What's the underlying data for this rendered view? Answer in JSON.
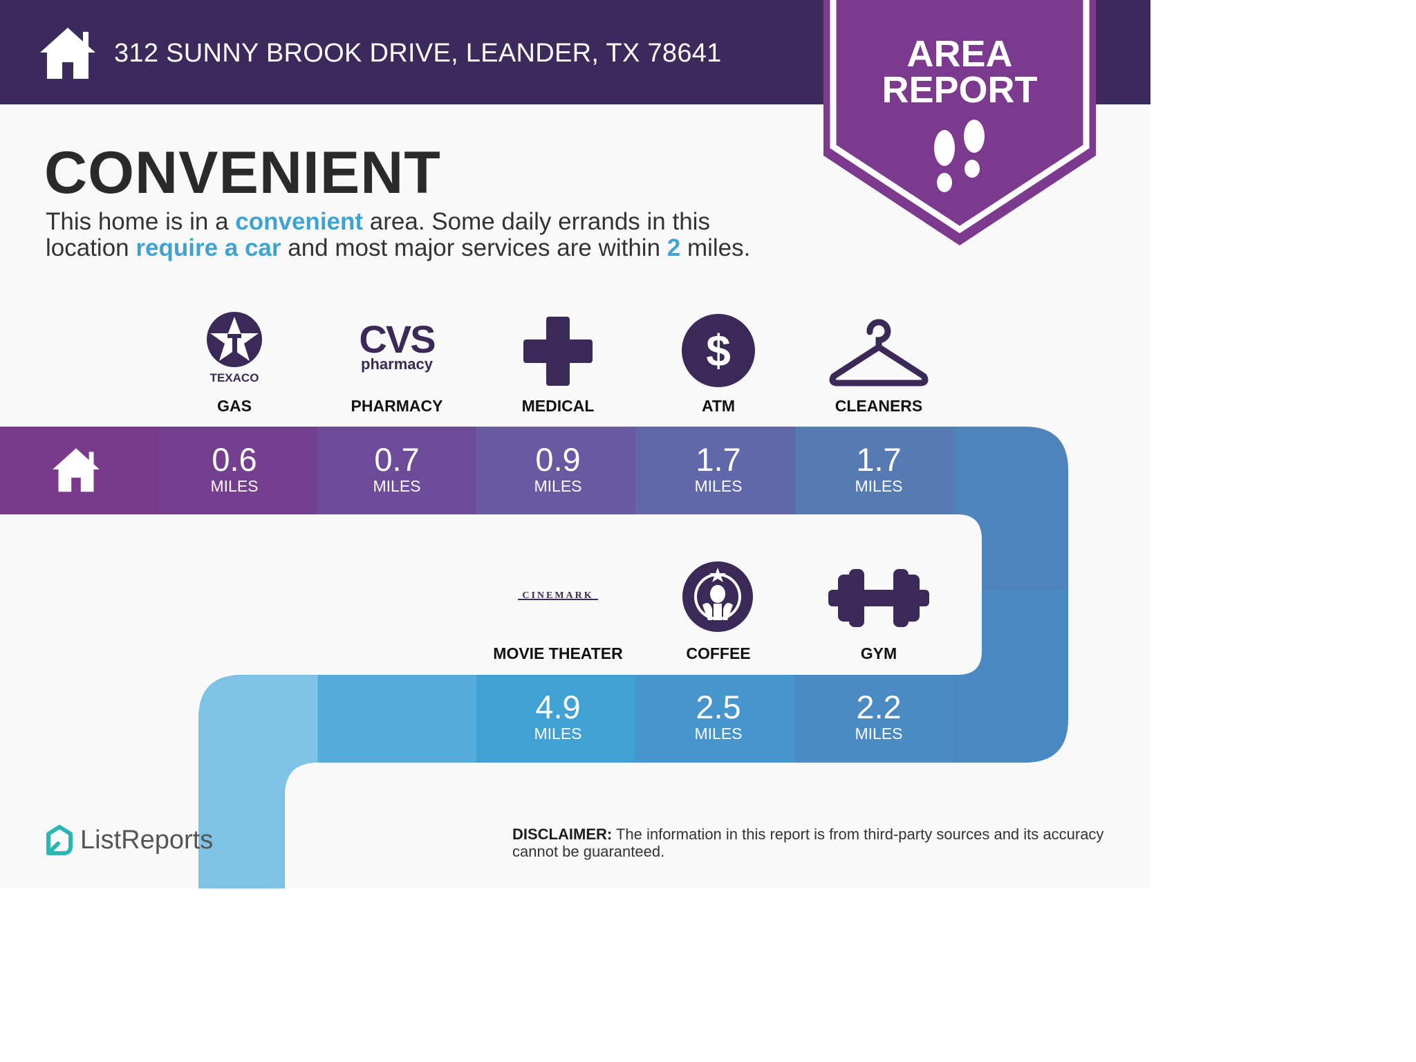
{
  "header": {
    "address": "312 SUNNY BROOK DRIVE, LEANDER, TX 78641",
    "home_icon": "house-icon"
  },
  "badge": {
    "line1": "AREA",
    "line2": "REPORT",
    "icon": "footprints-icon"
  },
  "headline": "CONVENIENT",
  "lead": {
    "p1": "This home is in a ",
    "h1": "convenient",
    "p2": " area. Some daily errands in this",
    "p3": "location ",
    "h2": "require a car",
    "p4": " and most major services are within ",
    "h3": "2",
    "p5": " miles."
  },
  "route_row1": [
    {
      "category": "GAS",
      "distance": "0.6",
      "unit": "MILES",
      "logo_text": "TEXACO",
      "icon": "texaco-star-icon"
    },
    {
      "category": "PHARMACY",
      "distance": "0.7",
      "unit": "MILES",
      "logo_text": "CVS",
      "logo_sub": "pharmacy",
      "icon": "cvs-logo-icon"
    },
    {
      "category": "MEDICAL",
      "distance": "0.9",
      "unit": "MILES",
      "icon": "medical-cross-icon"
    },
    {
      "category": "ATM",
      "distance": "1.7",
      "unit": "MILES",
      "icon": "dollar-icon"
    },
    {
      "category": "CLEANERS",
      "distance": "1.7",
      "unit": "MILES",
      "icon": "hanger-icon"
    }
  ],
  "route_row2": [
    {
      "category": "MOVIE THEATER",
      "distance": "4.9",
      "unit": "MILES",
      "logo_text": "CINEMARK",
      "icon": "cinemark-logo-icon"
    },
    {
      "category": "COFFEE",
      "distance": "2.5",
      "unit": "MILES",
      "icon": "starbucks-logo-icon"
    },
    {
      "category": "GYM",
      "distance": "2.2",
      "unit": "MILES",
      "icon": "dumbbell-icon"
    }
  ],
  "colors": {
    "header_bg": "#3c2a5c",
    "badge_purple": "#7b3a8e",
    "highlight_blue": "#3fa3d2",
    "icon_dark": "#3b2a58"
  },
  "disclaimer": {
    "label": "DISCLAIMER:",
    "text": " The information in this report is from third-party sources and its accuracy cannot be guaranteed."
  },
  "brand": {
    "name": "ListReports",
    "icon": "listreports-logo-icon"
  }
}
